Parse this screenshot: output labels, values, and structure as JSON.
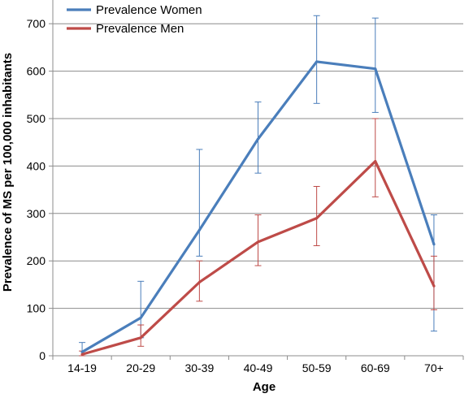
{
  "chart_data": {
    "type": "line",
    "title": "",
    "xlabel": "Age",
    "ylabel": "Prevalence of MS per 100,000 inhabitants",
    "categories": [
      "14-19",
      "20-29",
      "30-39",
      "40-49",
      "50-59",
      "60-69",
      "70+"
    ],
    "ylim": [
      0,
      750
    ],
    "yticks": [
      0,
      100,
      200,
      300,
      400,
      500,
      600,
      700
    ],
    "grid": true,
    "legend_position": "top-left",
    "series": [
      {
        "name": "Prevalence Women",
        "color": "#4a7ebb",
        "values": [
          8,
          80,
          265,
          457,
          620,
          605,
          235
        ],
        "error_low": [
          0,
          38,
          210,
          385,
          532,
          513,
          52
        ],
        "error_high": [
          28,
          157,
          435,
          535,
          717,
          712,
          297
        ]
      },
      {
        "name": "Prevalence Men",
        "color": "#be4b48",
        "values": [
          3,
          38,
          155,
          240,
          290,
          410,
          147
        ],
        "error_low": [
          0,
          20,
          115,
          190,
          232,
          335,
          97
        ],
        "error_high": [
          10,
          65,
          200,
          297,
          357,
          500,
          210
        ]
      }
    ]
  }
}
